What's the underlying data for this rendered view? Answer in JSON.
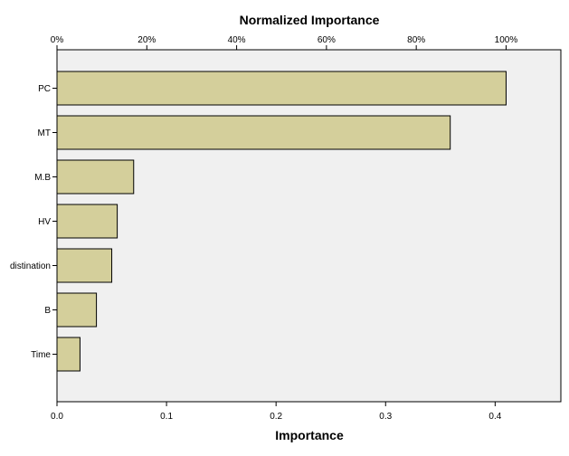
{
  "chart_data": {
    "type": "bar",
    "orientation": "horizontal",
    "categories": [
      "PC",
      "MT",
      "M.B",
      "HV",
      "distination",
      "B",
      "Time"
    ],
    "values": [
      0.41,
      0.359,
      0.07,
      0.055,
      0.05,
      0.036,
      0.021
    ],
    "xlabel": "Importance",
    "x2label": "Normalized Importance",
    "xlim": [
      0,
      0.46
    ],
    "xticks": [
      "0.0",
      "0.1",
      "0.2",
      "0.3",
      "0.4"
    ],
    "x2ticks": [
      "0%",
      "20%",
      "40%",
      "60%",
      "80%",
      "100%"
    ],
    "grid": false,
    "bar_color": "#D4CF9B",
    "bar_edge_color": "#000000",
    "plot_background": "#F0F0F0"
  }
}
